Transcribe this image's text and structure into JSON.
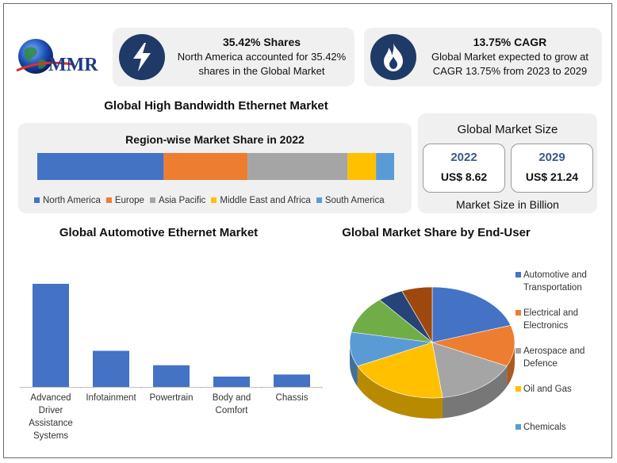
{
  "brand": {
    "logo_text": "MMR"
  },
  "stats": [
    {
      "title": "35.42% Shares",
      "text": "North America accounted for 35.42% shares in the Global Market",
      "icon": "lightning-icon"
    },
    {
      "title": "13.75% CAGR",
      "text": "Global Market expected to grow at CAGR 13.75% from 2023 to 2029",
      "icon": "flame-icon"
    }
  ],
  "main_title": "Global High Bandwidth Ethernet Market",
  "region": {
    "title": "Region-wise Market Share in 2022",
    "chart_data": {
      "type": "bar",
      "stacked": true,
      "orientation": "horizontal",
      "title": "Region-wise Market Share in 2022",
      "legend_position": "bottom",
      "series": [
        {
          "name": "North America",
          "values": [
            35.42
          ],
          "color": "#4472c4"
        },
        {
          "name": "Europe",
          "values": [
            23.5
          ],
          "color": "#ed7d31"
        },
        {
          "name": "Asia Pacific",
          "values": [
            28
          ],
          "color": "#a5a5a5"
        },
        {
          "name": "Middle East and Africa",
          "values": [
            8
          ],
          "color": "#ffc000"
        },
        {
          "name": "South America",
          "values": [
            5.08
          ],
          "color": "#5b9bd5"
        }
      ]
    }
  },
  "market_size": {
    "title": "Global Market Size",
    "items": [
      {
        "year": "2022",
        "value": "US$ 8.62"
      },
      {
        "year": "2029",
        "value": "US$ 21.24"
      }
    ],
    "footer": "Market Size in Billion"
  },
  "automotive": {
    "title": "Global Automotive Ethernet Market",
    "chart_data": {
      "type": "bar",
      "title": "Global Automotive Ethernet Market",
      "categories": [
        "Advanced Driver Assistance Systems",
        "Infotainment",
        "Powertrain",
        "Body and Comfort",
        "Chassis"
      ],
      "values": [
        100,
        35,
        21,
        10,
        12
      ],
      "color": "#4472c4",
      "grid": false
    }
  },
  "end_user": {
    "title": "Global Market Share by End-User",
    "chart_data": {
      "type": "pie",
      "title": "Global Market Share by End-User",
      "legend_position": "right",
      "slices": [
        {
          "name": "Automotive and Transportation",
          "value": 20,
          "color": "#4472c4"
        },
        {
          "name": "Electrical and Electronics",
          "value": 12,
          "color": "#ed7d31"
        },
        {
          "name": "Aerospace and Defence",
          "value": 16,
          "color": "#a5a5a5"
        },
        {
          "name": "Oil and Gas",
          "value": 20,
          "color": "#ffc000"
        },
        {
          "name": "Chemicals",
          "value": 10,
          "color": "#5b9bd5"
        },
        {
          "name": "",
          "value": 11,
          "color": "#70ad47"
        },
        {
          "name": "",
          "value": 5,
          "color": "#264478"
        },
        {
          "name": "",
          "value": 6,
          "color": "#9e480e"
        }
      ]
    }
  }
}
